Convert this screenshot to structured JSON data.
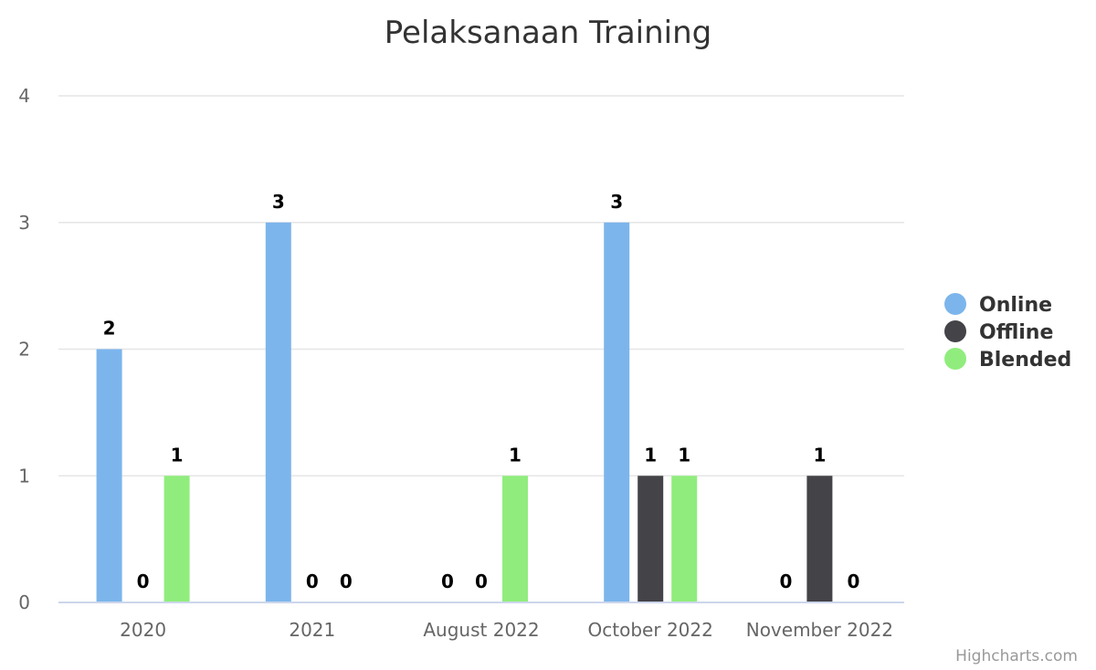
{
  "chart_data": {
    "type": "bar",
    "title": "Pelaksanaan Training",
    "categories": [
      "2020",
      "2021",
      "August 2022",
      "October 2022",
      "November 2022"
    ],
    "series": [
      {
        "name": "Online",
        "color": "#7cb5ec",
        "values": [
          2,
          3,
          0,
          3,
          0
        ]
      },
      {
        "name": "Offline",
        "color": "#434348",
        "values": [
          0,
          0,
          0,
          1,
          1
        ]
      },
      {
        "name": "Blended",
        "color": "#90ed7d",
        "values": [
          1,
          0,
          1,
          1,
          0
        ]
      }
    ],
    "ylim": [
      0,
      4
    ],
    "yticks": [
      0,
      1,
      2,
      3,
      4
    ],
    "grid": true,
    "data_labels": true,
    "legend_position": "right"
  },
  "credits": "Highcharts.com",
  "colors": {
    "grid": "#e6e6e6",
    "axis_line": "#ccd6eb"
  }
}
